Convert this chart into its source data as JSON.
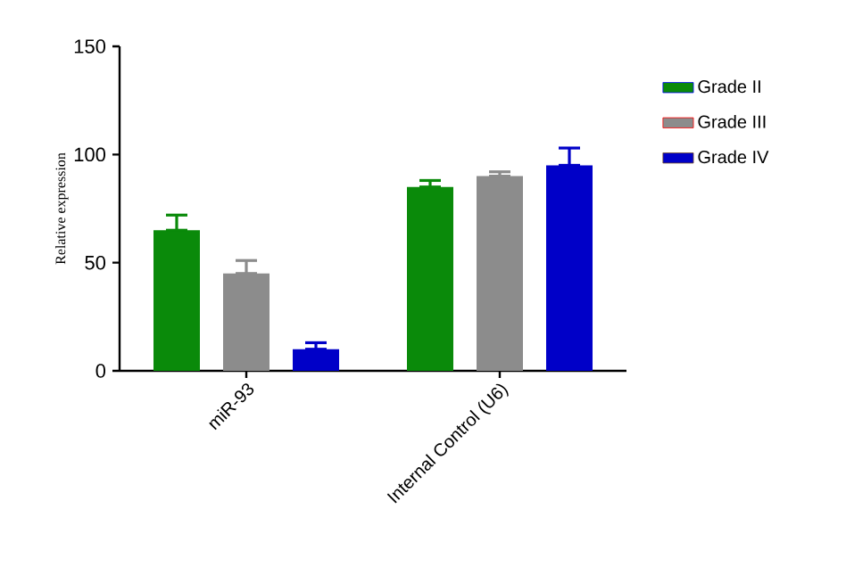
{
  "chart_data": {
    "type": "bar",
    "ylabel": "Relative expression",
    "categories": [
      "miR-93",
      "Internal Control (U6)"
    ],
    "series": [
      {
        "name": "Grade II",
        "color": "#0a8a0a",
        "values": [
          65,
          85
        ],
        "errors": [
          [
            65,
            72
          ],
          [
            85,
            88
          ]
        ]
      },
      {
        "name": "Grade III",
        "color": "#8c8c8c",
        "values": [
          45,
          90
        ],
        "errors": [
          [
            45,
            51
          ],
          [
            90,
            92
          ]
        ]
      },
      {
        "name": "Grade IV",
        "color": "#0000c8",
        "values": [
          10,
          95
        ],
        "errors": [
          [
            10,
            13
          ],
          [
            95,
            103
          ]
        ]
      }
    ],
    "ylim": [
      0,
      150
    ],
    "yticks": [
      0,
      50,
      100,
      150
    ],
    "grid": false,
    "legend": "top right"
  }
}
